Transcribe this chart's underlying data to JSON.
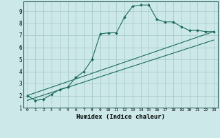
{
  "title": "",
  "xlabel": "Humidex (Indice chaleur)",
  "background_color": "#cce8e8",
  "grid_color": "#aacccc",
  "line_color": "#1a6b5a",
  "xlim": [
    -0.5,
    23.5
  ],
  "ylim": [
    1,
    9.8
  ],
  "yticks": [
    1,
    2,
    3,
    4,
    5,
    6,
    7,
    8,
    9
  ],
  "xticks": [
    0,
    1,
    2,
    3,
    4,
    5,
    6,
    7,
    8,
    9,
    10,
    11,
    12,
    13,
    14,
    15,
    16,
    17,
    18,
    19,
    20,
    21,
    22,
    23
  ],
  "line1_x": [
    0,
    1,
    2,
    3,
    4,
    5,
    6,
    7,
    8,
    9,
    10,
    11,
    12,
    13,
    14,
    15,
    16,
    17,
    18,
    19,
    20,
    21,
    22,
    23
  ],
  "line1_y": [
    2.0,
    1.6,
    1.7,
    2.1,
    2.5,
    2.7,
    3.5,
    4.0,
    5.0,
    7.1,
    7.2,
    7.2,
    8.5,
    9.4,
    9.5,
    9.5,
    8.3,
    8.1,
    8.1,
    7.7,
    7.4,
    7.4,
    7.3,
    7.3
  ],
  "line2_x": [
    0,
    23
  ],
  "line2_y": [
    2.0,
    7.3
  ],
  "line3_x": [
    0,
    23
  ],
  "line3_y": [
    1.6,
    6.6
  ]
}
